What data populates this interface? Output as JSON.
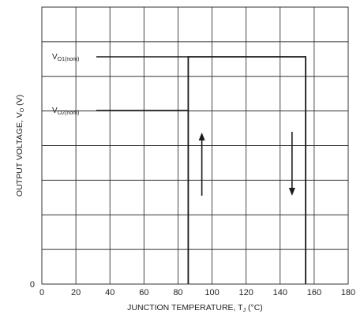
{
  "chart_data": {
    "type": "line",
    "title": "",
    "xlabel": "JUNCTION TEMPERATURE, TJ (°C)",
    "xlabel_parts": {
      "main": "JUNCTION TEMPERATURE, T",
      "sub": "J",
      "tail": " (°C)"
    },
    "ylabel": "OUTPUT VOLTAGE, VO (V)",
    "ylabel_parts": {
      "main": "OUTPUT VOLTAGE, V",
      "sub": "O",
      "tail": " (V)"
    },
    "xlim": [
      0,
      180
    ],
    "x_ticks": [
      0,
      20,
      40,
      60,
      80,
      100,
      120,
      140,
      160,
      180
    ],
    "y_tick_labels": [
      "0"
    ],
    "grid": true,
    "y_grid_divisions": 8,
    "levels": [
      {
        "name": "VO1(nom)",
        "main": "V",
        "sub": "O1(nom)"
      },
      {
        "name": "VO2(nom)",
        "main": "V",
        "sub": "O2(nom)"
      }
    ],
    "series": [
      {
        "x": [
          86,
          86,
          155,
          155
        ],
        "y": [
          "0",
          "VO1(nom)",
          "VO1(nom)",
          "0"
        ]
      }
    ],
    "arrows": [
      {
        "direction": "up",
        "x": 94
      },
      {
        "direction": "down",
        "x": 147
      }
    ],
    "colors": {
      "line": "#1a1a1a",
      "grid": "#333333"
    }
  }
}
